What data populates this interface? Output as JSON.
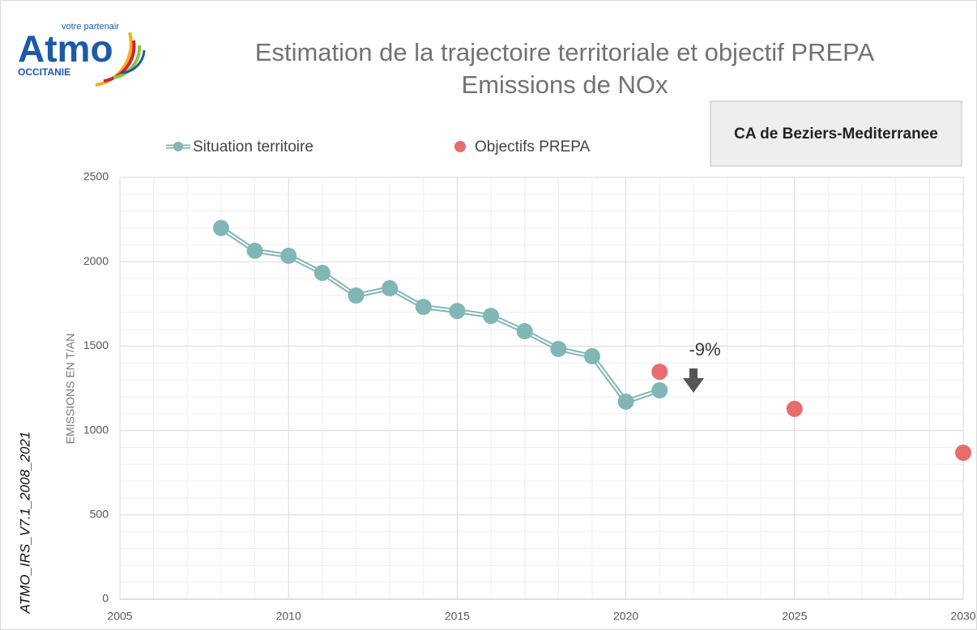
{
  "logo": {
    "name": "Atmo",
    "tagline": "votre partenair",
    "region": "OCCITANIE"
  },
  "side_note": "ATMO_IRS_V7.1_2008_2021",
  "chart_data": {
    "type": "line",
    "title": "Estimation de la trajectoire territoriale et objectif PREPA",
    "subtitle": "Emissions de NOx",
    "territory": "CA de Beziers-Mediterranee",
    "y_label": "EMISSIONS  EN T/AN",
    "annotation": "-9%",
    "xlim": [
      2005,
      2030
    ],
    "xticks": [
      2005,
      2010,
      2015,
      2020,
      2025,
      2030
    ],
    "ylim": [
      0,
      2500
    ],
    "yticks": [
      0,
      500,
      1000,
      1500,
      2000,
      2500
    ],
    "grid": true,
    "legend": "top",
    "series": [
      {
        "name": "Situation territoire",
        "color": "#80b6b6",
        "style": "line",
        "x": [
          2008,
          2009,
          2010,
          2011,
          2012,
          2013,
          2014,
          2015,
          2016,
          2017,
          2018,
          2019,
          2020,
          2021
        ],
        "values": [
          2200,
          2065,
          2035,
          1934,
          1800,
          1843,
          1732,
          1708,
          1679,
          1588,
          1483,
          1440,
          1171,
          1238
        ]
      },
      {
        "name": "Objectifs PREPA",
        "color": "#e96b6b",
        "style": "scatter",
        "x": [
          2021,
          2025,
          2030
        ],
        "values": [
          1348,
          1128,
          868
        ]
      }
    ]
  }
}
